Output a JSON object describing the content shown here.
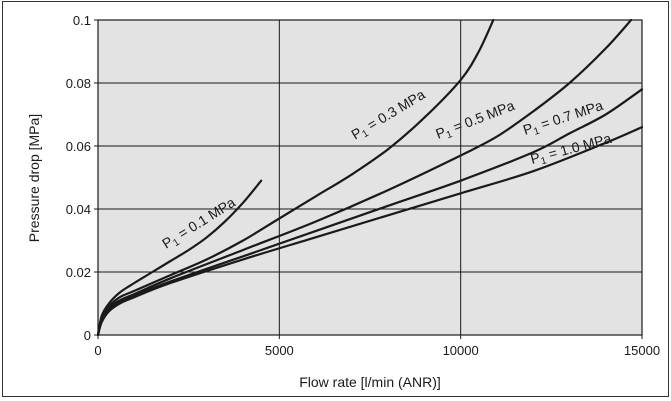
{
  "chart_data": {
    "type": "line",
    "title": "",
    "xlabel": "Flow rate [l/min (ANR)]",
    "ylabel": "Pressure drop [MPa]",
    "xlim": [
      0,
      15000
    ],
    "ylim": [
      0,
      0.1
    ],
    "x_ticks": [
      "0",
      "5000",
      "10000",
      "15000"
    ],
    "y_ticks": [
      "0",
      "0.02",
      "0.04",
      "0.06",
      "0.08",
      "0.1"
    ],
    "grid": true,
    "background_color": "#e3e3e3",
    "line_color": "#1a1a1a",
    "series": [
      {
        "name": "P1 = 0.1 MPa",
        "label_main": "P",
        "label_sub": "1",
        "label_rest": " = 0.1 MPa",
        "x": [
          0,
          100,
          300,
          600,
          1000,
          1500,
          2000,
          2500,
          3000,
          3500,
          4000,
          4500
        ],
        "y": [
          0,
          0.006,
          0.01,
          0.0135,
          0.0165,
          0.02,
          0.0235,
          0.027,
          0.031,
          0.036,
          0.042,
          0.049
        ]
      },
      {
        "name": "P1 = 0.3 MPa",
        "label_main": "P",
        "label_sub": "1",
        "label_rest": " = 0.3 MPa",
        "x": [
          0,
          100,
          300,
          600,
          1000,
          2000,
          3000,
          4000,
          5000,
          6000,
          7000,
          8000,
          9000,
          10000,
          10500,
          10900
        ],
        "y": [
          0,
          0.005,
          0.009,
          0.012,
          0.014,
          0.019,
          0.024,
          0.03,
          0.037,
          0.044,
          0.051,
          0.059,
          0.069,
          0.081,
          0.09,
          0.1
        ]
      },
      {
        "name": "P1 = 0.5 MPa",
        "label_main": "P",
        "label_sub": "1",
        "label_rest": " = 0.5 MPa",
        "x": [
          0,
          100,
          300,
          600,
          1000,
          2000,
          4000,
          6000,
          8000,
          10000,
          11000,
          12000,
          13000,
          14000,
          14700
        ],
        "y": [
          0,
          0.005,
          0.0085,
          0.011,
          0.013,
          0.018,
          0.027,
          0.036,
          0.046,
          0.057,
          0.063,
          0.071,
          0.08,
          0.091,
          0.1
        ]
      },
      {
        "name": "P1 = 0.7 MPa",
        "label_main": "P",
        "label_sub": "1",
        "label_rest": " = 0.7 MPa",
        "x": [
          0,
          100,
          300,
          600,
          1000,
          2000,
          4000,
          6000,
          8000,
          10000,
          12000,
          13000,
          14000,
          15000
        ],
        "y": [
          0,
          0.0045,
          0.008,
          0.0105,
          0.0125,
          0.017,
          0.025,
          0.033,
          0.041,
          0.049,
          0.058,
          0.064,
          0.07,
          0.078
        ]
      },
      {
        "name": "P1 = 1.0 MPa",
        "label_main": "P",
        "label_sub": "1",
        "label_rest": " = 1.0 MPa",
        "x": [
          0,
          100,
          300,
          600,
          1000,
          2000,
          4000,
          6000,
          8000,
          10000,
          12000,
          14000,
          15000
        ],
        "y": [
          0,
          0.004,
          0.0075,
          0.01,
          0.012,
          0.0165,
          0.024,
          0.031,
          0.038,
          0.045,
          0.052,
          0.061,
          0.066
        ]
      }
    ]
  }
}
